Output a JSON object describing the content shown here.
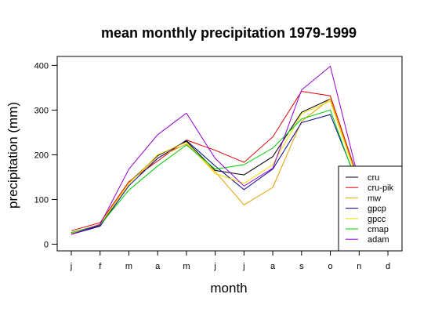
{
  "chart_data": {
    "type": "line",
    "title": "mean monthly precipitation 1979-1999",
    "xlabel": "month",
    "ylabel": "precipitation (mm)",
    "categories": [
      "j",
      "f",
      "m",
      "a",
      "m",
      "j",
      "j",
      "a",
      "s",
      "o",
      "n",
      "d"
    ],
    "ylim": [
      -15,
      420
    ],
    "yticks": [
      0,
      100,
      200,
      300,
      400
    ],
    "grid": false,
    "legend_position": "bottom-right",
    "series": [
      {
        "name": "cru",
        "color": "#000000",
        "values": [
          23,
          42,
          138,
          198,
          230,
          165,
          155,
          196,
          295,
          325,
          135,
          null
        ]
      },
      {
        "name": "cru-pik",
        "color": "#dd0000",
        "values": [
          30,
          48,
          140,
          186,
          233,
          210,
          183,
          240,
          342,
          332,
          140,
          null
        ]
      },
      {
        "name": "mw",
        "color": "#e6a000",
        "values": [
          25,
          44,
          138,
          193,
          224,
          162,
          88,
          127,
          275,
          325,
          135,
          null
        ]
      },
      {
        "name": "gpcp",
        "color": "#00008b",
        "values": [
          22,
          40,
          131,
          192,
          232,
          175,
          122,
          168,
          272,
          290,
          128,
          null
        ]
      },
      {
        "name": "gpcc",
        "color": "#f0e000",
        "values": [
          24,
          45,
          135,
          200,
          228,
          158,
          136,
          178,
          292,
          320,
          132,
          null
        ]
      },
      {
        "name": "cmap",
        "color": "#00cc00",
        "values": [
          26,
          43,
          121,
          175,
          222,
          168,
          178,
          215,
          280,
          300,
          122,
          null
        ]
      },
      {
        "name": "adam",
        "color": "#9400d3",
        "values": [
          22,
          44,
          168,
          245,
          293,
          192,
          130,
          170,
          345,
          398,
          140,
          null
        ]
      }
    ]
  }
}
